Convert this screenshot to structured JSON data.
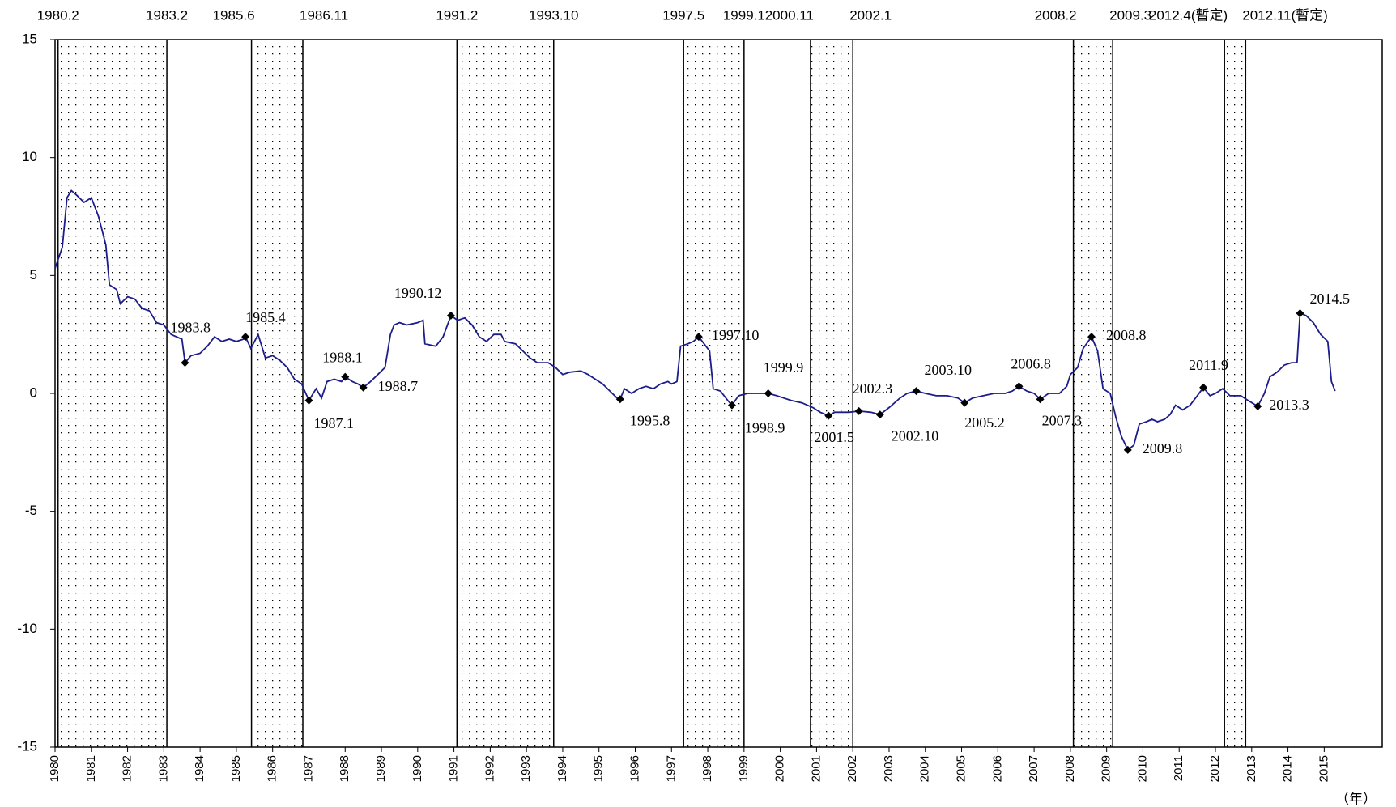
{
  "chart_data": {
    "type": "line",
    "color": "#1c1c8c",
    "xlabel": "（年）",
    "xlim": [
      1980,
      2016.6
    ],
    "ylim": [
      -15,
      15
    ],
    "xticks": [
      1980,
      1981,
      1982,
      1983,
      1984,
      1985,
      1986,
      1987,
      1988,
      1989,
      1990,
      1991,
      1992,
      1993,
      1994,
      1995,
      1996,
      1997,
      1998,
      1999,
      2000,
      2001,
      2002,
      2003,
      2004,
      2005,
      2006,
      2007,
      2008,
      2009,
      2010,
      2011,
      2012,
      2013,
      2014,
      2015
    ],
    "yticks": [
      -15,
      -10,
      -5,
      0,
      5,
      10,
      15
    ],
    "recessions": [
      {
        "start": {
          "value": 1980.083,
          "label": "1980.2"
        },
        "end": {
          "value": 1983.083,
          "label": "1983.2"
        }
      },
      {
        "start": {
          "value": 1985.417,
          "label": "1985.6"
        },
        "end": {
          "value": 1986.833,
          "label": "1986.11"
        }
      },
      {
        "start": {
          "value": 1991.083,
          "label": "1991.2"
        },
        "end": {
          "value": 1993.75,
          "label": "1993.10"
        }
      },
      {
        "start": {
          "value": 1997.333,
          "label": "1997.5"
        },
        "end": {
          "value": 1999.0,
          "label": "1999.1"
        }
      },
      {
        "start": {
          "value": 2000.833,
          "label": "2000.11"
        },
        "end": {
          "value": 2002.0,
          "label": "2002.1"
        }
      },
      {
        "start": {
          "value": 2008.083,
          "label": "2008.2"
        },
        "end": {
          "value": 2009.167,
          "label": "2009.3"
        }
      },
      {
        "start": {
          "value": 2012.25,
          "label": "2012.4(暫定)"
        },
        "end": {
          "value": 2012.833,
          "label": "2012.11(暫定)"
        }
      }
    ],
    "x": [
      1980.0,
      1980.2,
      1980.33,
      1980.45,
      1980.6,
      1980.8,
      1981.0,
      1981.2,
      1981.4,
      1981.5,
      1981.7,
      1981.8,
      1982.0,
      1982.2,
      1982.4,
      1982.6,
      1982.8,
      1983.0,
      1983.2,
      1983.5,
      1983.583,
      1983.75,
      1984.0,
      1984.2,
      1984.4,
      1984.6,
      1984.8,
      1985.0,
      1985.2,
      1985.25,
      1985.4,
      1985.6,
      1985.8,
      1986.0,
      1986.2,
      1986.4,
      1986.6,
      1986.8,
      1987.0,
      1987.2,
      1987.35,
      1987.5,
      1987.7,
      1987.9,
      1988.0,
      1988.2,
      1988.35,
      1988.5,
      1988.7,
      1988.9,
      1989.1,
      1989.25,
      1989.35,
      1989.5,
      1989.7,
      1990.0,
      1990.15,
      1990.2,
      1990.5,
      1990.7,
      1990.917,
      1991.1,
      1991.3,
      1991.5,
      1991.7,
      1991.9,
      1992.1,
      1992.3,
      1992.4,
      1992.7,
      1992.9,
      1993.1,
      1993.3,
      1993.6,
      1993.8,
      1994.0,
      1994.2,
      1994.5,
      1994.7,
      1994.9,
      1995.1,
      1995.3,
      1995.5,
      1995.583,
      1995.7,
      1995.9,
      1996.1,
      1996.3,
      1996.5,
      1996.7,
      1996.9,
      1997.0,
      1997.15,
      1997.25,
      1997.45,
      1997.6,
      1997.75,
      1997.9,
      1998.05,
      1998.15,
      1998.35,
      1998.55,
      1998.667,
      1998.85,
      1999.1,
      1999.4,
      1999.667,
      1999.9,
      2000.1,
      2000.3,
      2000.6,
      2000.9,
      2001.1,
      2001.333,
      2001.5,
      2001.7,
      2001.9,
      2002.167,
      2002.5,
      2002.75,
      2003.0,
      2003.3,
      2003.5,
      2003.75,
      2004.0,
      2004.3,
      2004.6,
      2004.9,
      2005.083,
      2005.3,
      2005.6,
      2005.9,
      2006.2,
      2006.4,
      2006.583,
      2006.8,
      2007.0,
      2007.167,
      2007.4,
      2007.7,
      2007.9,
      2008.0,
      2008.2,
      2008.35,
      2008.583,
      2008.75,
      2008.9,
      2009.1,
      2009.25,
      2009.4,
      2009.583,
      2009.75,
      2009.9,
      2010.1,
      2010.25,
      2010.4,
      2010.6,
      2010.75,
      2010.9,
      2011.1,
      2011.3,
      2011.5,
      2011.667,
      2011.85,
      2012.0,
      2012.2,
      2012.4,
      2012.7,
      2012.9,
      2013.167,
      2013.35,
      2013.5,
      2013.7,
      2013.9,
      2014.1,
      2014.25,
      2014.333,
      2014.5,
      2014.7,
      2014.9,
      2015.1,
      2015.2,
      2015.3
    ],
    "values": [
      5.3,
      6.2,
      8.3,
      8.6,
      8.4,
      8.1,
      8.3,
      7.5,
      6.3,
      4.6,
      4.4,
      3.8,
      4.1,
      4.0,
      3.6,
      3.5,
      3.0,
      2.9,
      2.5,
      2.3,
      1.3,
      1.6,
      1.7,
      2.0,
      2.4,
      2.2,
      2.3,
      2.2,
      2.3,
      2.4,
      1.9,
      2.5,
      1.5,
      1.6,
      1.4,
      1.1,
      0.6,
      0.4,
      -0.3,
      0.2,
      -0.2,
      0.5,
      0.6,
      0.5,
      0.7,
      0.5,
      0.4,
      0.25,
      0.5,
      0.8,
      1.1,
      2.5,
      2.9,
      3.0,
      2.9,
      3.0,
      3.1,
      2.1,
      2.0,
      2.4,
      3.3,
      3.1,
      3.2,
      2.9,
      2.4,
      2.2,
      2.5,
      2.5,
      2.2,
      2.1,
      1.8,
      1.5,
      1.3,
      1.3,
      1.1,
      0.8,
      0.9,
      0.95,
      0.8,
      0.6,
      0.4,
      0.1,
      -0.2,
      -0.25,
      0.2,
      0.0,
      0.2,
      0.3,
      0.2,
      0.4,
      0.5,
      0.4,
      0.5,
      2.0,
      2.1,
      2.2,
      2.4,
      2.1,
      1.8,
      0.2,
      0.1,
      -0.3,
      -0.5,
      -0.1,
      0.0,
      0.0,
      0.0,
      -0.1,
      -0.2,
      -0.3,
      -0.4,
      -0.6,
      -0.8,
      -0.95,
      -0.8,
      -0.8,
      -0.8,
      -0.75,
      -0.8,
      -0.9,
      -0.6,
      -0.2,
      0.0,
      0.1,
      0.0,
      -0.1,
      -0.1,
      -0.2,
      -0.4,
      -0.2,
      -0.1,
      0.0,
      0.0,
      0.1,
      0.3,
      0.1,
      0.0,
      -0.25,
      0.0,
      0.0,
      0.3,
      0.8,
      1.1,
      1.9,
      2.4,
      1.8,
      0.2,
      0.0,
      -1.0,
      -1.8,
      -2.4,
      -2.2,
      -1.3,
      -1.2,
      -1.1,
      -1.2,
      -1.1,
      -0.9,
      -0.5,
      -0.7,
      -0.5,
      -0.1,
      0.25,
      -0.1,
      0.0,
      0.2,
      -0.1,
      -0.1,
      -0.3,
      -0.55,
      0.0,
      0.7,
      0.9,
      1.2,
      1.3,
      1.3,
      3.4,
      3.3,
      3.0,
      2.5,
      2.2,
      0.5,
      0.1
    ],
    "annotations": [
      {
        "label": "1983.8",
        "x": 1983.583,
        "value": 1.3
      },
      {
        "label": "1985.4",
        "x": 1985.25,
        "value": 2.4
      },
      {
        "label": "1987.1",
        "x": 1987.0,
        "value": -0.3
      },
      {
        "label": "1988.1",
        "x": 1988.0,
        "value": 0.7
      },
      {
        "label": "1988.7",
        "x": 1988.5,
        "value": 0.25
      },
      {
        "label": "1990.12",
        "x": 1990.917,
        "value": 3.3
      },
      {
        "label": "1995.8",
        "x": 1995.583,
        "value": -0.25
      },
      {
        "label": "1997.10",
        "x": 1997.75,
        "value": 2.4
      },
      {
        "label": "1998.9",
        "x": 1998.667,
        "value": -0.5
      },
      {
        "label": "1999.9",
        "x": 1999.667,
        "value": 0.0
      },
      {
        "label": "2001.5",
        "x": 2001.333,
        "value": -0.95
      },
      {
        "label": "2002.3",
        "x": 2002.167,
        "value": -0.75
      },
      {
        "label": "2002.10",
        "x": 2002.75,
        "value": -0.9
      },
      {
        "label": "2003.10",
        "x": 2003.75,
        "value": 0.1
      },
      {
        "label": "2005.2",
        "x": 2005.083,
        "value": -0.4
      },
      {
        "label": "2006.8",
        "x": 2006.583,
        "value": 0.3
      },
      {
        "label": "2007.3",
        "x": 2007.167,
        "value": -0.25
      },
      {
        "label": "2008.8",
        "x": 2008.583,
        "value": 2.4
      },
      {
        "label": "2009.8",
        "x": 2009.583,
        "value": -2.4
      },
      {
        "label": "2011.9",
        "x": 2011.667,
        "value": 0.25
      },
      {
        "label": "2013.3",
        "x": 2013.167,
        "value": -0.55
      },
      {
        "label": "2014.5",
        "x": 2014.333,
        "value": 3.4
      }
    ]
  }
}
